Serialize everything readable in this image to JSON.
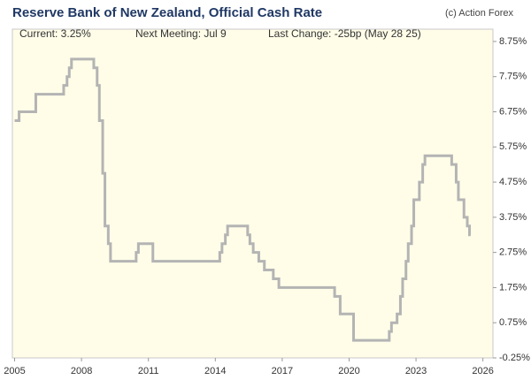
{
  "chart_data": {
    "type": "step-line",
    "title": "Reserve Bank of New Zealand, Official Cash Rate",
    "source": "(c) Action Forex",
    "info": [
      "Current:  3.25%",
      "Next Meeting:  Jul 9",
      "Last Change:  -25bp (May 28 25)"
    ],
    "series": [
      {
        "name": "Official Cash Rate",
        "color": "#b4b4b4",
        "x": [
          2005.0,
          2005.2,
          2005.95,
          2007.2,
          2007.35,
          2007.45,
          2007.55,
          2008.55,
          2008.7,
          2008.8,
          2008.95,
          2009.05,
          2009.2,
          2009.3,
          2010.45,
          2010.55,
          2011.2,
          2014.2,
          2014.3,
          2014.45,
          2014.55,
          2015.45,
          2015.55,
          2015.7,
          2015.95,
          2016.2,
          2016.6,
          2016.85,
          2019.35,
          2019.6,
          2020.2,
          2021.8,
          2021.9,
          2022.15,
          2022.3,
          2022.4,
          2022.55,
          2022.65,
          2022.8,
          2022.9,
          2023.15,
          2023.3,
          2023.4,
          2024.6,
          2024.8,
          2024.9,
          2025.15,
          2025.3,
          2025.4,
          2025.45
        ],
        "values": [
          6.5,
          6.75,
          7.25,
          7.5,
          7.75,
          8.0,
          8.25,
          8.0,
          7.5,
          6.5,
          5.0,
          3.5,
          3.0,
          2.5,
          2.75,
          3.0,
          2.5,
          2.75,
          3.0,
          3.25,
          3.5,
          3.25,
          3.0,
          2.75,
          2.5,
          2.25,
          2.0,
          1.75,
          1.5,
          1.0,
          0.25,
          0.5,
          0.75,
          1.0,
          1.5,
          2.0,
          2.5,
          3.0,
          3.5,
          4.25,
          4.75,
          5.25,
          5.5,
          5.25,
          4.75,
          4.25,
          3.75,
          3.5,
          3.25,
          3.25
        ]
      }
    ],
    "xlim": [
      2004.9,
      2026.45
    ],
    "xticks": [
      2005,
      2008,
      2011,
      2014,
      2017,
      2020,
      2023,
      2026
    ],
    "ylim": [
      -0.25,
      9.1
    ],
    "yticks": [
      {
        "value": -0.25,
        "label": "-0.25%"
      },
      {
        "value": 0.75,
        "label": "0.75%"
      },
      {
        "value": 1.75,
        "label": "1.75%"
      },
      {
        "value": 2.75,
        "label": "2.75%"
      },
      {
        "value": 3.75,
        "label": "3.75%"
      },
      {
        "value": 4.75,
        "label": "4.75%"
      },
      {
        "value": 5.75,
        "label": "5.75%"
      },
      {
        "value": 6.75,
        "label": "6.75%"
      },
      {
        "value": 7.75,
        "label": "7.75%"
      },
      {
        "value": 8.75,
        "label": "8.75%"
      }
    ]
  }
}
